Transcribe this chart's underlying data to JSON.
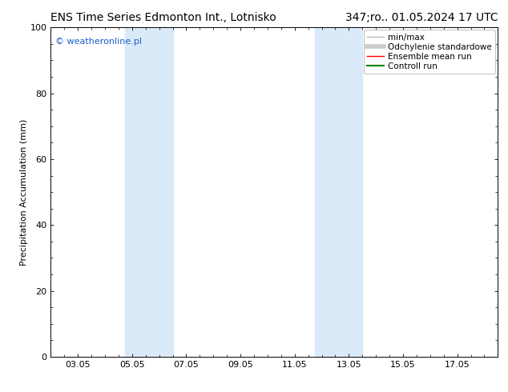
{
  "title_left": "ENS Time Series Edmonton Int., Lotnisko",
  "title_right": "347;ro.. 01.05.2024 17 UTC",
  "ylabel": "Precipitation Accumulation (mm)",
  "watermark": "© weatheronline.pl",
  "watermark_color": "#1a5fcc",
  "ylim": [
    0,
    100
  ],
  "yticks": [
    0,
    20,
    40,
    60,
    80,
    100
  ],
  "xtick_labels": [
    "03.05",
    "05.05",
    "07.05",
    "09.05",
    "11.05",
    "13.05",
    "15.05",
    "17.05"
  ],
  "xtick_positions": [
    2,
    4,
    6,
    8,
    10,
    12,
    14,
    16
  ],
  "xlim": [
    1,
    17.5
  ],
  "background_color": "#ffffff",
  "plot_bg_color": "#ffffff",
  "shade_bands": [
    {
      "x_start": 3.75,
      "x_end": 5.5,
      "color": "#daeaf8"
    },
    {
      "x_start": 10.75,
      "x_end": 12.5,
      "color": "#daeaf8"
    }
  ],
  "legend_entries": [
    {
      "label": "min/max",
      "color": "#bbbbbb",
      "lw": 1.0,
      "ls": "-"
    },
    {
      "label": "Odchylenie standardowe",
      "color": "#cccccc",
      "lw": 4,
      "ls": "-"
    },
    {
      "label": "Ensemble mean run",
      "color": "#ff0000",
      "lw": 1.0,
      "ls": "-"
    },
    {
      "label": "Controll run",
      "color": "#008000",
      "lw": 1.5,
      "ls": "-"
    }
  ],
  "title_fontsize": 10,
  "axis_label_fontsize": 8,
  "tick_fontsize": 8,
  "watermark_fontsize": 8,
  "legend_fontsize": 7.5
}
